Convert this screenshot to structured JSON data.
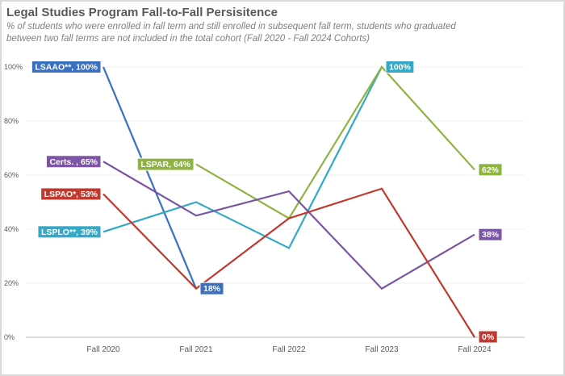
{
  "chart_data": {
    "type": "line",
    "title": "Legal Studies Program Fall-to-Fall Persisitence",
    "subtitle_line1": "% of students who were enrolled in fall term and still enrolled in subsequent fall term, students who graduated",
    "subtitle_line2": "between two fall terms are not included in the total cohort (Fall 2020 - Fall 2024 Cohorts)",
    "categories": [
      "Fall 2020",
      "Fall 2021",
      "Fall 2022",
      "Fall 2023",
      "Fall 2024"
    ],
    "yticks": [
      "0%",
      "20%",
      "40%",
      "60%",
      "80%",
      "100%"
    ],
    "ylim": [
      0,
      100
    ],
    "grid": true,
    "series": [
      {
        "name": "LSAAO**",
        "color": "#3a70bf",
        "values": [
          100,
          18,
          null,
          null,
          null
        ],
        "start_label": "LSAAO**, 100%",
        "end_label": "18%"
      },
      {
        "name": "LSPLO**",
        "color": "#33a8c7",
        "values": [
          39,
          50,
          33,
          100,
          null
        ],
        "start_label": "LSPLO**, 39%",
        "end_label": "100%"
      },
      {
        "name": "LSPAR",
        "color": "#8db441",
        "values": [
          null,
          64,
          44,
          100,
          62
        ],
        "start_label": "LSPAR, 64%",
        "end_label": "62%"
      },
      {
        "name": "Certs.",
        "color": "#7c55a5",
        "values": [
          65,
          45,
          54,
          18,
          38
        ],
        "start_label": "Certs. , 65%",
        "end_label": "38%"
      },
      {
        "name": "LSPAO*",
        "color": "#c0392f",
        "values": [
          53,
          18,
          44,
          55,
          0
        ],
        "start_label": "LSPAO*, 53%",
        "end_label": "0%"
      }
    ]
  }
}
